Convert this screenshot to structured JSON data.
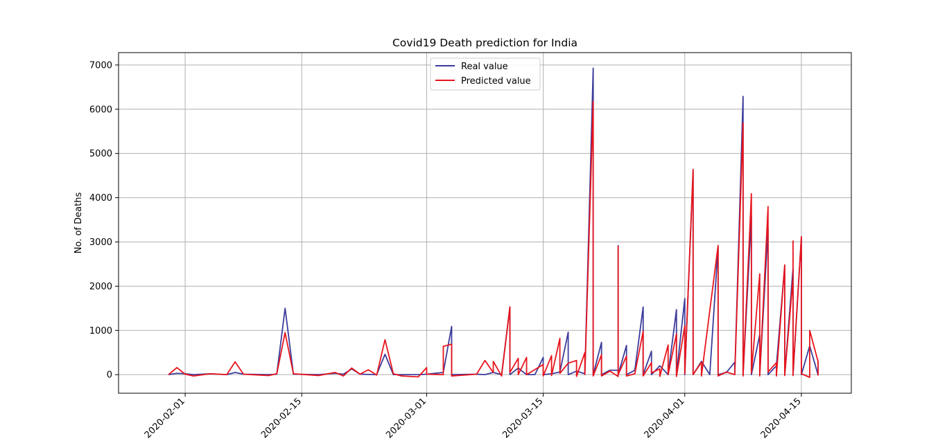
{
  "chart_data": {
    "type": "line",
    "title": "Covid19 Death prediction for India",
    "xlabel": "",
    "ylabel": "No. of Deaths",
    "ylim": [
      -420,
      7280
    ],
    "xlim": [
      "2020-01-24",
      "2020-04-21"
    ],
    "yticks": [
      0,
      1000,
      2000,
      3000,
      4000,
      5000,
      6000,
      7000
    ],
    "ytick_labels": [
      "0",
      "1000",
      "2000",
      "3000",
      "4000",
      "5000",
      "6000",
      "7000"
    ],
    "xticks": [
      "2020-02-01",
      "2020-02-15",
      "2020-03-01",
      "2020-03-15",
      "2020-04-01",
      "2020-04-15"
    ],
    "xtick_labels": [
      "2020-02-01",
      "2020-02-15",
      "2020-03-01",
      "2020-03-15",
      "2020-04-01",
      "2020-04-15"
    ],
    "grid": true,
    "legend_position": "upper-center",
    "colors": {
      "real": "#3b3b9c",
      "predicted": "#e8141c",
      "grid": "#b0b0b0"
    },
    "series": [
      {
        "name": "Real value",
        "color": "#3b3b9c",
        "points": [
          [
            "2020-01-30",
            0
          ],
          [
            "2020-01-31",
            30
          ],
          [
            "2020-02-01",
            20
          ],
          [
            "2020-02-02",
            0
          ],
          [
            "2020-02-04",
            20
          ],
          [
            "2020-02-06",
            0
          ],
          [
            "2020-02-07",
            50
          ],
          [
            "2020-02-08",
            10
          ],
          [
            "2020-02-11",
            0
          ],
          [
            "2020-02-12",
            10
          ],
          [
            "2020-02-13",
            1500
          ],
          [
            "2020-02-14",
            10
          ],
          [
            "2020-02-17",
            0
          ],
          [
            "2020-02-19",
            30
          ],
          [
            "2020-02-20",
            10
          ],
          [
            "2020-02-21",
            130
          ],
          [
            "2020-02-22",
            10
          ],
          [
            "2020-02-24",
            0
          ],
          [
            "2020-02-25",
            460
          ],
          [
            "2020-02-26",
            0
          ],
          [
            "2020-02-28",
            0
          ],
          [
            "2020-02-29",
            0
          ],
          [
            "2020-03-01",
            10
          ],
          [
            "2020-03-03",
            50
          ],
          [
            "2020-03-04",
            1090
          ],
          [
            "2020-03-04",
            0
          ],
          [
            "2020-03-07",
            10
          ],
          [
            "2020-03-08",
            0
          ],
          [
            "2020-03-09",
            50
          ],
          [
            "2020-03-10",
            0
          ],
          [
            "2020-03-11",
            1530
          ],
          [
            "2020-03-11",
            0
          ],
          [
            "2020-03-12",
            150
          ],
          [
            "2020-03-13",
            0
          ],
          [
            "2020-03-14",
            0
          ],
          [
            "2020-03-15",
            390
          ],
          [
            "2020-03-15",
            0
          ],
          [
            "2020-03-16",
            20
          ],
          [
            "2020-03-17",
            60
          ],
          [
            "2020-03-18",
            960
          ],
          [
            "2020-03-18",
            0
          ],
          [
            "2020-03-19",
            80
          ],
          [
            "2020-03-20",
            20
          ],
          [
            "2020-03-21",
            6930
          ],
          [
            "2020-03-21",
            0
          ],
          [
            "2020-03-22",
            730
          ],
          [
            "2020-03-22",
            0
          ],
          [
            "2020-03-23",
            100
          ],
          [
            "2020-03-24",
            100
          ],
          [
            "2020-03-24",
            2920
          ],
          [
            "2020-03-24",
            0
          ],
          [
            "2020-03-25",
            660
          ],
          [
            "2020-03-25",
            0
          ],
          [
            "2020-03-26",
            100
          ],
          [
            "2020-03-27",
            1530
          ],
          [
            "2020-03-27",
            0
          ],
          [
            "2020-03-28",
            530
          ],
          [
            "2020-03-28",
            0
          ],
          [
            "2020-03-29",
            200
          ],
          [
            "2020-03-30",
            0
          ],
          [
            "2020-03-31",
            1470
          ],
          [
            "2020-03-31",
            0
          ],
          [
            "2020-04-01",
            1720
          ],
          [
            "2020-04-01",
            0
          ],
          [
            "2020-04-02",
            4600
          ],
          [
            "2020-04-02",
            0
          ],
          [
            "2020-04-03",
            300
          ],
          [
            "2020-04-04",
            0
          ],
          [
            "2020-04-05",
            2900
          ],
          [
            "2020-04-05",
            0
          ],
          [
            "2020-04-06",
            50
          ],
          [
            "2020-04-07",
            280
          ],
          [
            "2020-04-07",
            0
          ],
          [
            "2020-04-08",
            6290
          ],
          [
            "2020-04-08",
            0
          ],
          [
            "2020-04-09",
            3580
          ],
          [
            "2020-04-09",
            0
          ],
          [
            "2020-04-10",
            900
          ],
          [
            "2020-04-10",
            0
          ],
          [
            "2020-04-11",
            3300
          ],
          [
            "2020-04-11",
            0
          ],
          [
            "2020-04-12",
            200
          ],
          [
            "2020-04-13",
            2460
          ],
          [
            "2020-04-13",
            0
          ],
          [
            "2020-04-14",
            2400
          ],
          [
            "2020-04-14",
            0
          ],
          [
            "2020-04-15",
            3100
          ],
          [
            "2020-04-15",
            0
          ],
          [
            "2020-04-16",
            650
          ],
          [
            "2020-04-17",
            0
          ],
          [
            "2020-04-17",
            320
          ]
        ]
      },
      {
        "name": "Predicted value",
        "color": "#e8141c",
        "points": [
          [
            "2020-01-30",
            0
          ],
          [
            "2020-01-31",
            160
          ],
          [
            "2020-02-01",
            10
          ],
          [
            "2020-02-02",
            -30
          ],
          [
            "2020-02-04",
            20
          ],
          [
            "2020-02-06",
            0
          ],
          [
            "2020-02-07",
            290
          ],
          [
            "2020-02-08",
            10
          ],
          [
            "2020-02-11",
            -20
          ],
          [
            "2020-02-12",
            20
          ],
          [
            "2020-02-13",
            950
          ],
          [
            "2020-02-14",
            20
          ],
          [
            "2020-02-17",
            -20
          ],
          [
            "2020-02-19",
            50
          ],
          [
            "2020-02-20",
            -30
          ],
          [
            "2020-02-21",
            150
          ],
          [
            "2020-02-22",
            10
          ],
          [
            "2020-02-23",
            110
          ],
          [
            "2020-02-24",
            -10
          ],
          [
            "2020-02-25",
            790
          ],
          [
            "2020-02-26",
            20
          ],
          [
            "2020-02-27",
            -30
          ],
          [
            "2020-02-29",
            -50
          ],
          [
            "2020-03-01",
            160
          ],
          [
            "2020-03-01",
            10
          ],
          [
            "2020-03-03",
            0
          ],
          [
            "2020-03-03",
            640
          ],
          [
            "2020-03-04",
            690
          ],
          [
            "2020-03-04",
            -30
          ],
          [
            "2020-03-07",
            10
          ],
          [
            "2020-03-08",
            320
          ],
          [
            "2020-03-09",
            50
          ],
          [
            "2020-03-09",
            300
          ],
          [
            "2020-03-10",
            -30
          ],
          [
            "2020-03-11",
            1530
          ],
          [
            "2020-03-11",
            50
          ],
          [
            "2020-03-12",
            370
          ],
          [
            "2020-03-12",
            0
          ],
          [
            "2020-03-13",
            390
          ],
          [
            "2020-03-13",
            0
          ],
          [
            "2020-03-15",
            230
          ],
          [
            "2020-03-15",
            -30
          ],
          [
            "2020-03-16",
            430
          ],
          [
            "2020-03-16",
            -20
          ],
          [
            "2020-03-17",
            820
          ],
          [
            "2020-03-17",
            30
          ],
          [
            "2020-03-18",
            260
          ],
          [
            "2020-03-19",
            320
          ],
          [
            "2020-03-19",
            -40
          ],
          [
            "2020-03-20",
            500
          ],
          [
            "2020-03-20",
            0
          ],
          [
            "2020-03-21",
            6180
          ],
          [
            "2020-03-21",
            -30
          ],
          [
            "2020-03-22",
            450
          ],
          [
            "2020-03-22",
            -30
          ],
          [
            "2020-03-23",
            80
          ],
          [
            "2020-03-24",
            -40
          ],
          [
            "2020-03-24",
            2900
          ],
          [
            "2020-03-24",
            0
          ],
          [
            "2020-03-25",
            420
          ],
          [
            "2020-03-25",
            -30
          ],
          [
            "2020-03-26",
            20
          ],
          [
            "2020-03-27",
            980
          ],
          [
            "2020-03-27",
            -30
          ],
          [
            "2020-03-28",
            270
          ],
          [
            "2020-03-28",
            40
          ],
          [
            "2020-03-29",
            130
          ],
          [
            "2020-03-29",
            -40
          ],
          [
            "2020-03-30",
            670
          ],
          [
            "2020-03-30",
            0
          ],
          [
            "2020-03-31",
            920
          ],
          [
            "2020-03-31",
            -40
          ],
          [
            "2020-04-01",
            1100
          ],
          [
            "2020-04-01",
            20
          ],
          [
            "2020-04-02",
            4640
          ],
          [
            "2020-04-02",
            0
          ],
          [
            "2020-04-03",
            280
          ],
          [
            "2020-04-03",
            -30
          ],
          [
            "2020-04-05",
            2920
          ],
          [
            "2020-04-05",
            -30
          ],
          [
            "2020-04-06",
            60
          ],
          [
            "2020-04-07",
            0
          ],
          [
            "2020-04-08",
            5690
          ],
          [
            "2020-04-08",
            -30
          ],
          [
            "2020-04-09",
            4090
          ],
          [
            "2020-04-09",
            40
          ],
          [
            "2020-04-10",
            2280
          ],
          [
            "2020-04-10",
            -30
          ],
          [
            "2020-04-11",
            3800
          ],
          [
            "2020-04-11",
            60
          ],
          [
            "2020-04-12",
            270
          ],
          [
            "2020-04-12",
            -30
          ],
          [
            "2020-04-13",
            2480
          ],
          [
            "2020-04-13",
            -20
          ],
          [
            "2020-04-14",
            2180
          ],
          [
            "2020-04-14",
            -20
          ],
          [
            "2020-04-14",
            3020
          ],
          [
            "2020-04-14",
            30
          ],
          [
            "2020-04-15",
            3120
          ],
          [
            "2020-04-15",
            20
          ],
          [
            "2020-04-16",
            -60
          ],
          [
            "2020-04-16",
            1000
          ],
          [
            "2020-04-17",
            300
          ],
          [
            "2020-04-17",
            -20
          ]
        ]
      }
    ]
  }
}
